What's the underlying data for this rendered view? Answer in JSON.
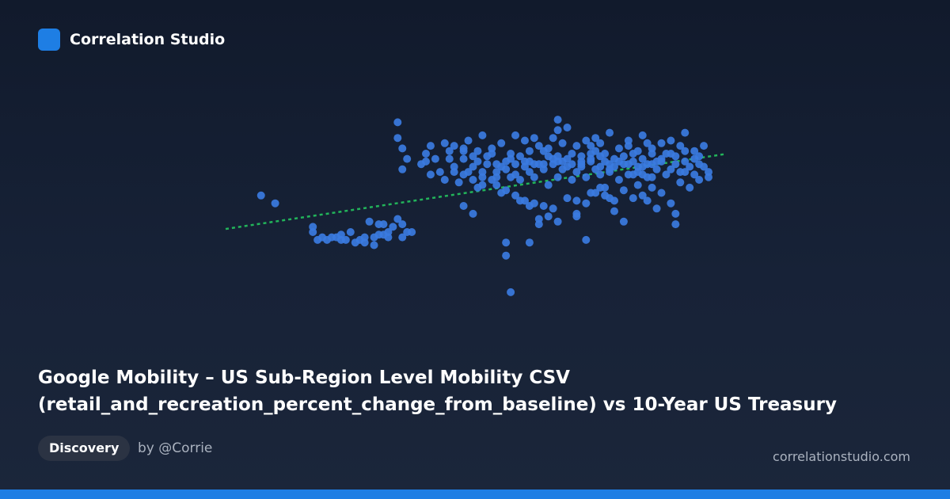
{
  "brand": {
    "name": "Correlation Studio",
    "logo_color": "#1e7ee4"
  },
  "title": {
    "line1": "Google Mobility – US Sub-Region Level Mobility CSV",
    "line2": "(retail_and_recreation_percent_change_from_baseline) vs 10-Year US Treasury"
  },
  "tag": "Discovery",
  "author": "by @Corrie",
  "site": "correlationstudio.com",
  "chart_data": {
    "type": "scatter",
    "title": "",
    "xlabel": "",
    "ylabel": "",
    "xlim": [
      0,
      100
    ],
    "ylim": [
      0,
      100
    ],
    "grid": false,
    "point_color": "#3b7be0",
    "trend_color": "#22b45a",
    "trendline": {
      "x": [
        0,
        100
      ],
      "y": [
        41.5,
        69.5
      ]
    },
    "points": [
      [
        5,
        54
      ],
      [
        8,
        51
      ],
      [
        16,
        42
      ],
      [
        16,
        40
      ],
      [
        17,
        37
      ],
      [
        18,
        38
      ],
      [
        19,
        37
      ],
      [
        20,
        38
      ],
      [
        21,
        38
      ],
      [
        22,
        39
      ],
      [
        23,
        37
      ],
      [
        24,
        40
      ],
      [
        25,
        36
      ],
      [
        26,
        37
      ],
      [
        27,
        38
      ],
      [
        28,
        44
      ],
      [
        29,
        38
      ],
      [
        30,
        43
      ],
      [
        31,
        43
      ],
      [
        32,
        40
      ],
      [
        33,
        42
      ],
      [
        34,
        45
      ],
      [
        35,
        43
      ],
      [
        36,
        40
      ],
      [
        37,
        40
      ],
      [
        32,
        38
      ],
      [
        35,
        38
      ],
      [
        22,
        37
      ],
      [
        29,
        35
      ],
      [
        30,
        39
      ],
      [
        31,
        39
      ],
      [
        27,
        36
      ],
      [
        34,
        76
      ],
      [
        34,
        82
      ],
      [
        35,
        72
      ],
      [
        35,
        64
      ],
      [
        36,
        68
      ],
      [
        39,
        66
      ],
      [
        40,
        67
      ],
      [
        41,
        62
      ],
      [
        42,
        68
      ],
      [
        43,
        63
      ],
      [
        44,
        60
      ],
      [
        45,
        68
      ],
      [
        45,
        71
      ],
      [
        46,
        63
      ],
      [
        46,
        65
      ],
      [
        47,
        59
      ],
      [
        48,
        68
      ],
      [
        48,
        71
      ],
      [
        49,
        63
      ],
      [
        50,
        65
      ],
      [
        50,
        69
      ],
      [
        51,
        57
      ],
      [
        51,
        67
      ],
      [
        52,
        63
      ],
      [
        52,
        61
      ],
      [
        53,
        69
      ],
      [
        53,
        66
      ],
      [
        54,
        70
      ],
      [
        54,
        60
      ],
      [
        55,
        63
      ],
      [
        55,
        61
      ],
      [
        56,
        65
      ],
      [
        57,
        64
      ],
      [
        58,
        61
      ],
      [
        58,
        68
      ],
      [
        59,
        62
      ],
      [
        60,
        60
      ],
      [
        60,
        69
      ],
      [
        61,
        65
      ],
      [
        62,
        63
      ],
      [
        62,
        67
      ],
      [
        63,
        61
      ],
      [
        64,
        66
      ],
      [
        65,
        64
      ],
      [
        66,
        58
      ],
      [
        67,
        66
      ],
      [
        68,
        61
      ],
      [
        68,
        69
      ],
      [
        69,
        64
      ],
      [
        70,
        65
      ],
      [
        71,
        60
      ],
      [
        72,
        63
      ],
      [
        73,
        66
      ],
      [
        74,
        61
      ],
      [
        75,
        68
      ],
      [
        76,
        64
      ],
      [
        77,
        62
      ],
      [
        78,
        67
      ],
      [
        79,
        63
      ],
      [
        80,
        65
      ],
      [
        81,
        60
      ],
      [
        82,
        66
      ],
      [
        83,
        62
      ],
      [
        84,
        67
      ],
      [
        85,
        63
      ],
      [
        86,
        65
      ],
      [
        87,
        61
      ],
      [
        88,
        66
      ],
      [
        89,
        64
      ],
      [
        90,
        68
      ],
      [
        91,
        62
      ],
      [
        92,
        64
      ],
      [
        93,
        66
      ],
      [
        94,
        63
      ],
      [
        95,
        67
      ],
      [
        96,
        65
      ],
      [
        97,
        62
      ],
      [
        98,
        66
      ],
      [
        99,
        65
      ],
      [
        100,
        61
      ],
      [
        40,
        70
      ],
      [
        41,
        73
      ],
      [
        44,
        74
      ],
      [
        46,
        73
      ],
      [
        48,
        72
      ],
      [
        49,
        75
      ],
      [
        51,
        71
      ],
      [
        52,
        77
      ],
      [
        54,
        72
      ],
      [
        56,
        74
      ],
      [
        58,
        70
      ],
      [
        59,
        77
      ],
      [
        62,
        71
      ],
      [
        64,
        73
      ],
      [
        66,
        72
      ],
      [
        67,
        76
      ],
      [
        69,
        74
      ],
      [
        71,
        70
      ],
      [
        72,
        73
      ],
      [
        74,
        75
      ],
      [
        76,
        71
      ],
      [
        77,
        74
      ],
      [
        79,
        78
      ],
      [
        81,
        72
      ],
      [
        83,
        75
      ],
      [
        85,
        71
      ],
      [
        86,
        77
      ],
      [
        88,
        72
      ],
      [
        90,
        74
      ],
      [
        92,
        70
      ],
      [
        94,
        73
      ],
      [
        95,
        78
      ],
      [
        97,
        71
      ],
      [
        99,
        73
      ],
      [
        61,
        75
      ],
      [
        63,
        76
      ],
      [
        65,
        71
      ],
      [
        66,
        69
      ],
      [
        68,
        67
      ],
      [
        70,
        68
      ],
      [
        73,
        67
      ],
      [
        75,
        70
      ],
      [
        77,
        69
      ],
      [
        78,
        70
      ],
      [
        80,
        68
      ],
      [
        82,
        69
      ],
      [
        84,
        70
      ],
      [
        86,
        68
      ],
      [
        88,
        70
      ],
      [
        90,
        67
      ],
      [
        91,
        70
      ],
      [
        93,
        69
      ],
      [
        95,
        71
      ],
      [
        97,
        68
      ],
      [
        98,
        69
      ],
      [
        55,
        66
      ],
      [
        57,
        67
      ],
      [
        59,
        66
      ],
      [
        61,
        67
      ],
      [
        63,
        66
      ],
      [
        65,
        66
      ],
      [
        67,
        68
      ],
      [
        69,
        67
      ],
      [
        71,
        66
      ],
      [
        73,
        65
      ],
      [
        75,
        67
      ],
      [
        77,
        65
      ],
      [
        79,
        66
      ],
      [
        81,
        67
      ],
      [
        83,
        66
      ],
      [
        85,
        65
      ],
      [
        87,
        66
      ],
      [
        89,
        67
      ],
      [
        48,
        62
      ],
      [
        50,
        60
      ],
      [
        52,
        58
      ],
      [
        55,
        58
      ],
      [
        57,
        56
      ],
      [
        59,
        54
      ],
      [
        61,
        52
      ],
      [
        63,
        51
      ],
      [
        65,
        50
      ],
      [
        67,
        49
      ],
      [
        70,
        53
      ],
      [
        72,
        52
      ],
      [
        74,
        51
      ],
      [
        76,
        55
      ],
      [
        78,
        54
      ],
      [
        80,
        52
      ],
      [
        82,
        56
      ],
      [
        84,
        53
      ],
      [
        86,
        54
      ],
      [
        88,
        57
      ],
      [
        90,
        55
      ],
      [
        92,
        51
      ],
      [
        94,
        59
      ],
      [
        96,
        57
      ],
      [
        48,
        50
      ],
      [
        50,
        47
      ],
      [
        56,
        55
      ],
      [
        60,
        52
      ],
      [
        62,
        50
      ],
      [
        64,
        45
      ],
      [
        66,
        46
      ],
      [
        68,
        44
      ],
      [
        72,
        46
      ],
      [
        80,
        48
      ],
      [
        82,
        44
      ],
      [
        89,
        49
      ],
      [
        93,
        47
      ],
      [
        75,
        55
      ],
      [
        77,
        57
      ],
      [
        79,
        53
      ],
      [
        85,
        58
      ],
      [
        87,
        52
      ],
      [
        57,
        36
      ],
      [
        57,
        31
      ],
      [
        58,
        17
      ],
      [
        62,
        36
      ],
      [
        64,
        43
      ],
      [
        68,
        79
      ],
      [
        68,
        83
      ],
      [
        70,
        80
      ],
      [
        72,
        47
      ],
      [
        74,
        37
      ],
      [
        78,
        57
      ],
      [
        88,
        61
      ],
      [
        92,
        75
      ],
      [
        93,
        43
      ],
      [
        95,
        63
      ],
      [
        73,
        69
      ],
      [
        75,
        73
      ],
      [
        76,
        76
      ],
      [
        79,
        64
      ],
      [
        83,
        73
      ],
      [
        84,
        62
      ],
      [
        86,
        62
      ],
      [
        87,
        74
      ],
      [
        98,
        60
      ],
      [
        100,
        63
      ]
    ]
  }
}
